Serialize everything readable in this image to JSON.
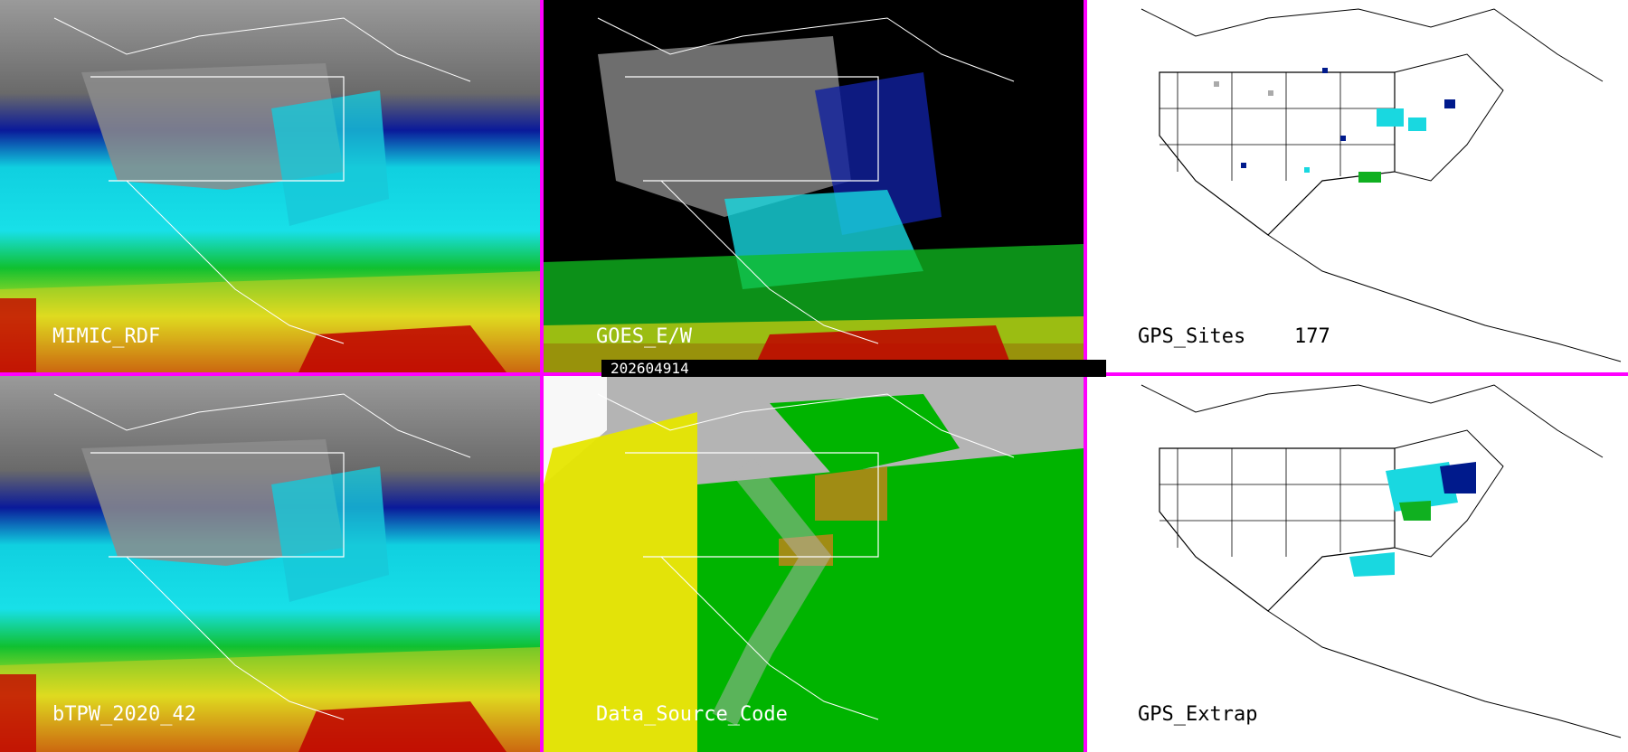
{
  "panels": {
    "mimic": {
      "label": "MIMIC_RDF"
    },
    "goes": {
      "label": "GOES_E/W"
    },
    "gps_sites": {
      "label": "GPS_Sites",
      "count": "177"
    },
    "btpw": {
      "label": "bTPW_2020_42"
    },
    "data_source": {
      "label": "Data_Source_Code"
    },
    "gps_extrap": {
      "label": "GPS_Extrap"
    }
  },
  "timestamp": "202604914",
  "colors": {
    "divider": "#ff00ff",
    "dry_gray": "#8a8a8a",
    "dark_blue": "#001a8c",
    "cyan": "#19e6e6",
    "green": "#14c814",
    "yellow": "#e6e600",
    "red": "#c80000",
    "ds_gray": "#b4b4b4",
    "ds_yellow": "#e6e600",
    "ds_green": "#00b400",
    "ds_olive": "#a08c14"
  }
}
